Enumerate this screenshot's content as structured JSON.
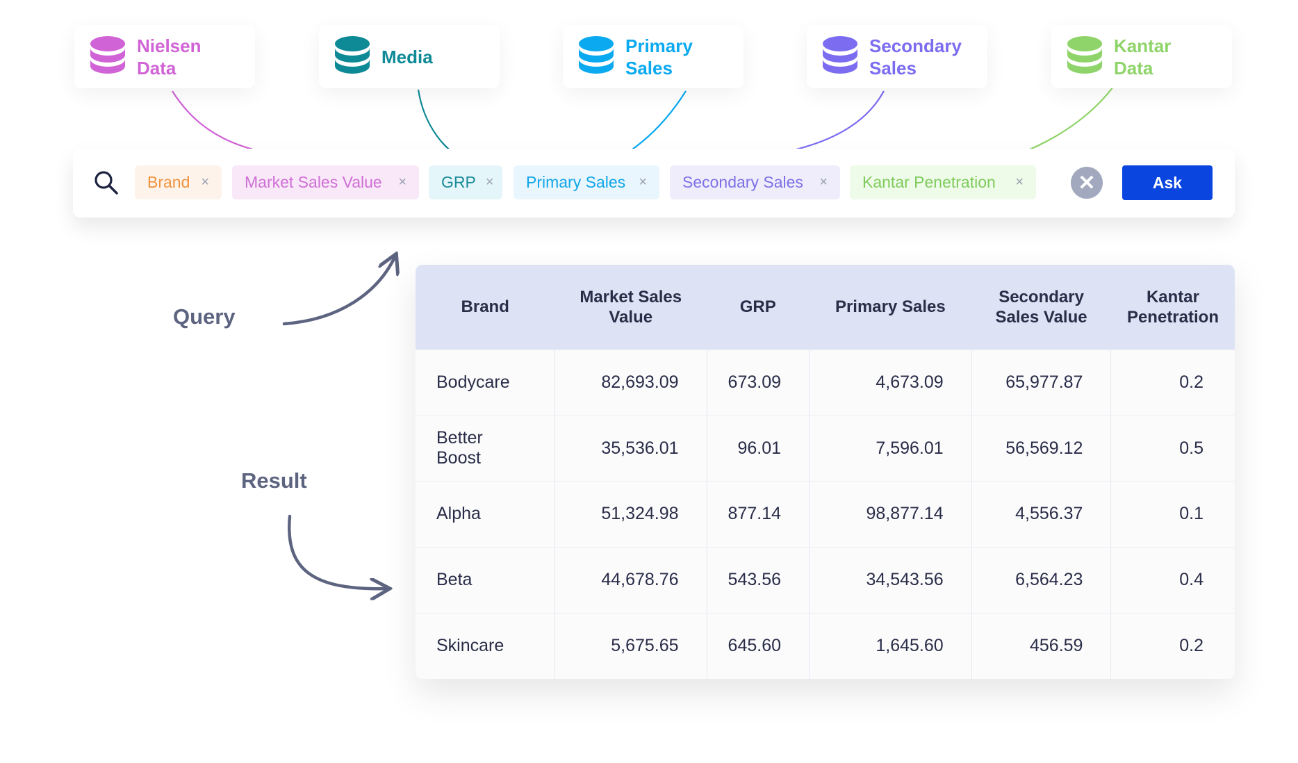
{
  "sources": [
    {
      "label": "Nielsen\nData",
      "color": "#d063d6"
    },
    {
      "label": "Media",
      "color": "#0e8a96"
    },
    {
      "label": "Primary\nSales",
      "color": "#0aa9f0"
    },
    {
      "label": "Secondary\nSales",
      "color": "#7b6cf0"
    },
    {
      "label": "Kantar\nData",
      "color": "#8fd46a"
    }
  ],
  "query": {
    "chips": [
      {
        "label": "Brand",
        "color": "#f0923c",
        "bg": "#fdf3ea"
      },
      {
        "label": "Market Sales Value",
        "color": "#cf6fd6",
        "bg": "#f9e8f8"
      },
      {
        "label": "GRP",
        "color": "#1a8b98",
        "bg": "#e4f6fa"
      },
      {
        "label": "Primary Sales",
        "color": "#10a6e8",
        "bg": "#e9f6fd"
      },
      {
        "label": "Secondary Sales",
        "color": "#7d70e6",
        "bg": "#efedfc"
      },
      {
        "label": "Kantar Penetration",
        "color": "#7fcb5c",
        "bg": "#eefbe9"
      }
    ],
    "remove_glyph": "×",
    "clear_glyph": "✕",
    "ask_label": "Ask"
  },
  "labels": {
    "query": "Query",
    "result": "Result"
  },
  "table": {
    "headers": [
      "Brand",
      "Market Sales\nValue",
      "GRP",
      "Primary Sales",
      "Secondary\nSales Value",
      "Kantar\nPenetration"
    ],
    "rows": [
      [
        "Bodycare",
        "82,693.09",
        "673.09",
        "4,673.09",
        "65,977.87",
        "0.2"
      ],
      [
        "Better Boost",
        "35,536.01",
        "96.01",
        "7,596.01",
        "56,569.12",
        "0.5"
      ],
      [
        "Alpha",
        "51,324.98",
        "877.14",
        "98,877.14",
        "4,556.37",
        "0.1"
      ],
      [
        "Beta",
        "44,678.76",
        "543.56",
        "34,543.56",
        "6,564.23",
        "0.4"
      ],
      [
        "Skincare",
        "5,675.65",
        "645.60",
        "1,645.60",
        "456.59",
        "0.2"
      ]
    ]
  }
}
